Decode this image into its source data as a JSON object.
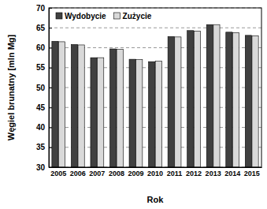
{
  "chart_data": {
    "type": "bar",
    "x_label": "Rok",
    "y_label": "Węgiel brunatny [mln Mg]",
    "categories": [
      "2005",
      "2006",
      "2007",
      "2008",
      "2009",
      "2010",
      "2011",
      "2012",
      "2013",
      "2014",
      "2015"
    ],
    "series": [
      {
        "name": "Wydobycie",
        "color": "#404040",
        "values": [
          61.6,
          60.8,
          57.5,
          59.7,
          57.1,
          56.5,
          62.8,
          64.3,
          65.8,
          63.9,
          63.1
        ]
      },
      {
        "name": "Zużycie",
        "color": "#d9d9d9",
        "values": [
          61.5,
          60.7,
          57.5,
          59.6,
          57.0,
          56.6,
          62.7,
          64.2,
          65.8,
          63.8,
          63.0
        ]
      }
    ],
    "ylim": [
      30,
      70
    ],
    "yticks": [
      30,
      35,
      40,
      45,
      50,
      55,
      60,
      65,
      70
    ],
    "grid": true,
    "legend": "upper left"
  }
}
